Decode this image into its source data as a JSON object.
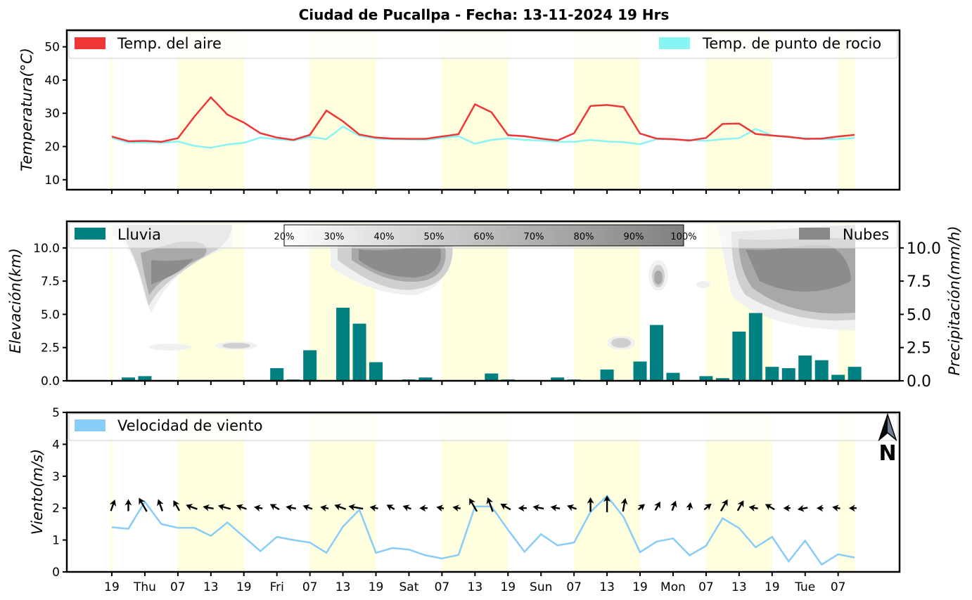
{
  "title": "Ciudad de Pucallpa   -   Fecha: 13-11-2024 19 Hrs",
  "colors": {
    "temp_air": "#ee3636",
    "dewpoint": "#88f4f4",
    "rain": "#008080",
    "cloud": "#888888",
    "wind": "#88ccf8",
    "day_band": "#ffffe0"
  },
  "x_tick_labels": [
    "19",
    "Thu",
    "07",
    "13",
    "19",
    "Fri",
    "07",
    "13",
    "19",
    "Sat",
    "07",
    "13",
    "19",
    "Sun",
    "07",
    "13",
    "19",
    "Mon",
    "07",
    "13",
    "19",
    "Tue",
    "07"
  ],
  "north_arrow_label": "N",
  "chart_data": [
    {
      "type": "line",
      "ylabel": "Temperatura(°C)",
      "ylim": [
        7,
        55
      ],
      "yticks": [
        10,
        20,
        30,
        40,
        50
      ],
      "legend_placement": "top",
      "x": [
        0,
        1,
        2,
        3,
        4,
        5,
        6,
        7,
        8,
        9,
        10,
        11,
        12,
        13,
        14,
        15,
        16,
        17,
        18,
        19,
        20,
        21,
        22,
        23,
        24,
        25,
        26,
        27,
        28,
        29,
        30,
        31,
        32,
        33,
        34,
        35,
        36,
        37,
        38,
        39,
        40,
        41,
        42,
        43,
        44,
        45
      ],
      "series": [
        {
          "name": "Temp. del aire",
          "values": [
            23.0,
            21.6,
            21.7,
            21.4,
            22.5,
            29.0,
            34.8,
            29.6,
            27.2,
            24.0,
            22.7,
            22.0,
            23.5,
            30.8,
            27.6,
            23.6,
            22.7,
            22.4,
            22.3,
            22.3,
            23.0,
            23.7,
            32.7,
            30.3,
            23.4,
            23.1,
            22.4,
            21.8,
            24.0,
            32.2,
            32.5,
            31.9,
            23.9,
            22.4,
            22.2,
            21.8,
            22.6,
            26.8,
            26.9,
            23.8,
            23.3,
            22.9,
            22.3,
            22.4,
            23.0,
            23.5
          ]
        },
        {
          "name": "Temp. de punto de rocio",
          "values": [
            22.6,
            21.2,
            21.2,
            21.1,
            21.5,
            20.2,
            19.6,
            20.6,
            21.1,
            22.7,
            22.2,
            21.8,
            22.9,
            22.2,
            26.0,
            23.2,
            22.4,
            22.2,
            22.1,
            22.0,
            22.6,
            23.1,
            20.8,
            22.0,
            22.5,
            22.0,
            21.8,
            21.4,
            21.4,
            22.0,
            21.5,
            21.3,
            20.7,
            22.2,
            22.1,
            22.0,
            21.7,
            22.2,
            22.5,
            25.3,
            23.3,
            22.8,
            22.5,
            22.2,
            22.2,
            22.6
          ]
        }
      ]
    },
    {
      "type": "bar",
      "ylabel": "Elevación(km)",
      "y2label": "Precipitación(mm/h)",
      "ylim": [
        0,
        12
      ],
      "yticks": [
        0.0,
        2.5,
        5.0,
        7.5,
        10.0
      ],
      "yticklabels": [
        "0.0",
        "2.5",
        "5.0",
        "7.5",
        "10.0"
      ],
      "legend_placement": "top",
      "series": [
        {
          "name": "Lluvia",
          "x": [
            0,
            1,
            2,
            3,
            4,
            5,
            6,
            7,
            8,
            9,
            10,
            11,
            12,
            13,
            14,
            15,
            16,
            17,
            18,
            19,
            20,
            21,
            22,
            23,
            24,
            25,
            26,
            27,
            28,
            29,
            30,
            31,
            32,
            33,
            34,
            35,
            36,
            37,
            38,
            39,
            40,
            41,
            42,
            43,
            44,
            45
          ],
          "values": [
            0.0,
            0.25,
            0.35,
            0.05,
            0.02,
            0.0,
            0.0,
            0.0,
            0.02,
            0.0,
            0.95,
            0.1,
            2.3,
            0.0,
            5.5,
            4.3,
            1.4,
            0.05,
            0.1,
            0.25,
            0.0,
            0.0,
            0.05,
            0.55,
            0.1,
            0.05,
            0.02,
            0.25,
            0.1,
            0.02,
            0.85,
            0.0,
            1.45,
            4.2,
            0.6,
            0.0,
            0.35,
            0.2,
            3.7,
            5.1,
            1.05,
            0.95,
            1.9,
            1.55,
            0.45,
            1.05
          ]
        },
        {
          "name": "Nubes",
          "type": "contour"
        }
      ],
      "colorbar_labels": [
        "20%",
        "30%",
        "40%",
        "50%",
        "60%",
        "70%",
        "80%",
        "90%",
        "100%"
      ]
    },
    {
      "type": "line",
      "ylabel": "Viento(m/s)",
      "ylim": [
        0,
        5
      ],
      "yticks": [
        0,
        1,
        2,
        3,
        4,
        5
      ],
      "legend_placement": "top-left",
      "x": [
        0,
        1,
        2,
        3,
        4,
        5,
        6,
        7,
        8,
        9,
        10,
        11,
        12,
        13,
        14,
        15,
        16,
        17,
        18,
        19,
        20,
        21,
        22,
        23,
        24,
        25,
        26,
        27,
        28,
        29,
        30,
        31,
        32,
        33,
        34,
        35,
        36,
        37,
        38,
        39,
        40,
        41,
        42,
        43,
        44,
        45
      ],
      "series": [
        {
          "name": "Velocidad de viento",
          "values": [
            1.4,
            1.35,
            2.2,
            1.5,
            1.38,
            1.38,
            1.13,
            1.55,
            1.1,
            0.65,
            1.1,
            1.0,
            0.92,
            0.6,
            1.42,
            1.95,
            0.6,
            0.75,
            0.7,
            0.52,
            0.42,
            0.53,
            2.05,
            2.05,
            1.32,
            0.63,
            1.18,
            0.83,
            0.92,
            1.88,
            2.38,
            1.72,
            0.62,
            0.95,
            1.05,
            0.52,
            0.82,
            1.68,
            1.37,
            0.77,
            1.1,
            0.33,
            0.98,
            0.23,
            0.55,
            0.45
          ]
        }
      ],
      "wind_direction_deg": [
        200,
        180,
        150,
        160,
        150,
        110,
        100,
        105,
        110,
        100,
        120,
        100,
        110,
        100,
        110,
        100,
        100,
        120,
        110,
        90,
        100,
        100,
        150,
        160,
        120,
        90,
        100,
        100,
        110,
        180,
        180,
        190,
        230,
        210,
        200,
        190,
        230,
        210,
        210,
        100,
        120,
        90,
        80,
        90,
        100,
        90
      ]
    }
  ]
}
